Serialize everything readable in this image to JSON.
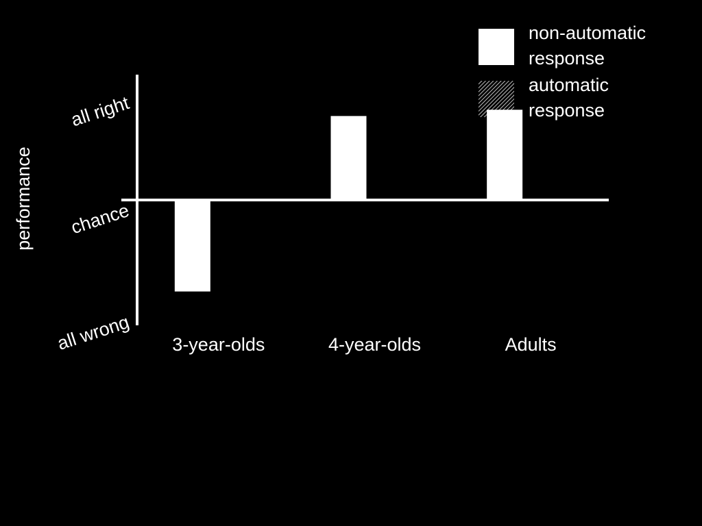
{
  "chart_data": {
    "type": "bar",
    "y_label": "performance",
    "categories": [
      "3-year-olds",
      "4-year-olds",
      "Adults"
    ],
    "series": [
      {
        "name": "non-automatic response",
        "color": "#ffffff",
        "values": [
          -0.73,
          0.67,
          0.72
        ]
      },
      {
        "name": "automatic response",
        "color": "#ffffff",
        "pattern": "hatch",
        "values": [
          null,
          null,
          null
        ]
      }
    ],
    "ylim": [
      -1,
      1
    ],
    "yticks": [
      {
        "value": 1,
        "label": "all right"
      },
      {
        "value": 0,
        "label": "chance"
      },
      {
        "value": -1,
        "label": "all wrong"
      }
    ],
    "legend": "top-right"
  }
}
